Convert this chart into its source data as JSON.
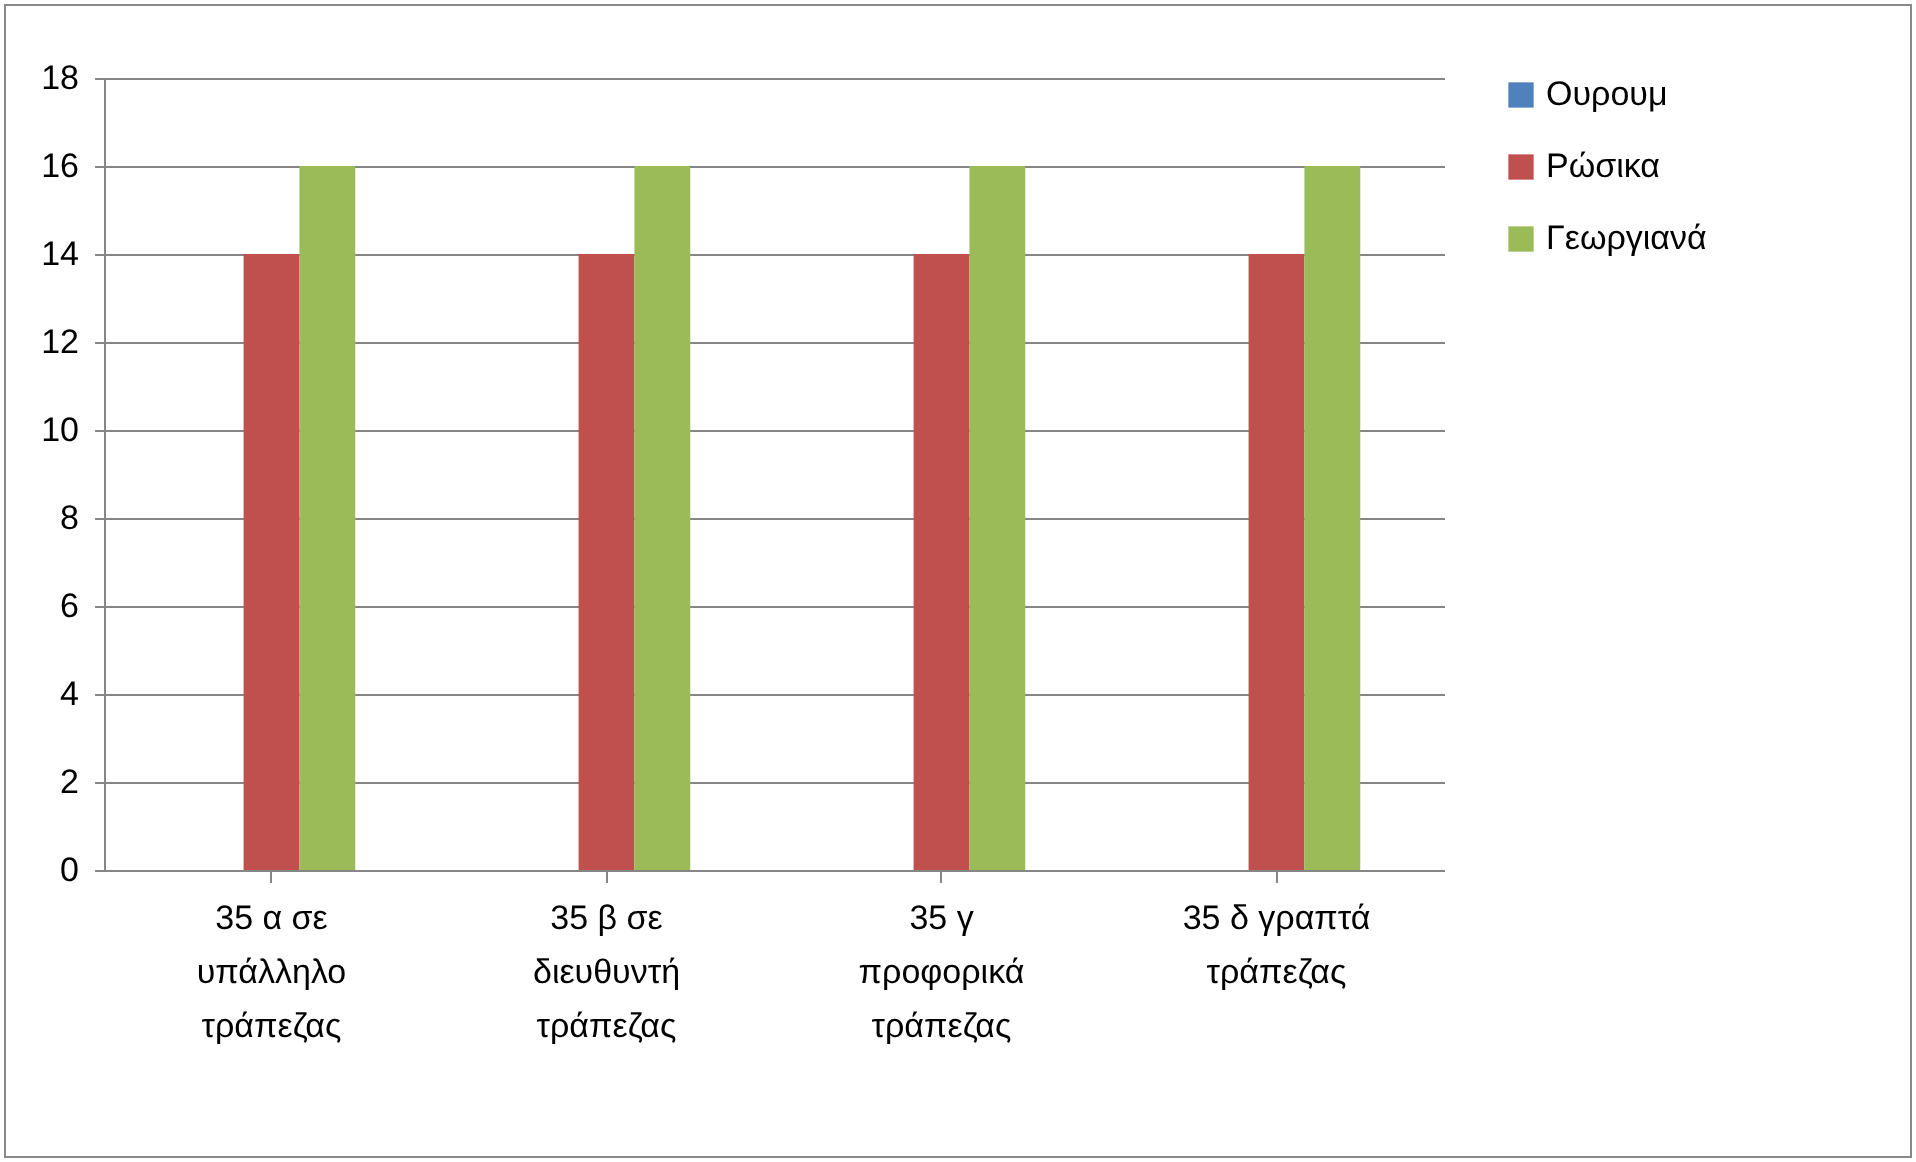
{
  "chart_data": {
    "type": "bar",
    "categories": [
      "35 α σε\nυπάλληλο\nτράπεζας",
      "35 β σε\nδιευθυντή\nτράπεζας",
      "35 γ\nπροφορικά\nτράπεζας",
      "35 δ  γραπτά\nτράπεζας"
    ],
    "series": [
      {
        "name": "Ουρουμ",
        "color": "#4f81bd",
        "values": [
          0,
          0,
          0,
          0
        ]
      },
      {
        "name": "Ρώσικα",
        "color": "#c0504d",
        "values": [
          14,
          14,
          14,
          14
        ]
      },
      {
        "name": "Γεωργιανά",
        "color": "#9bbb59",
        "values": [
          16,
          16,
          16,
          16
        ]
      }
    ],
    "ylim": [
      0,
      18
    ],
    "yticks": [
      0,
      2,
      4,
      6,
      8,
      10,
      12,
      14,
      16,
      18
    ],
    "grid": "y",
    "legend": "right"
  }
}
